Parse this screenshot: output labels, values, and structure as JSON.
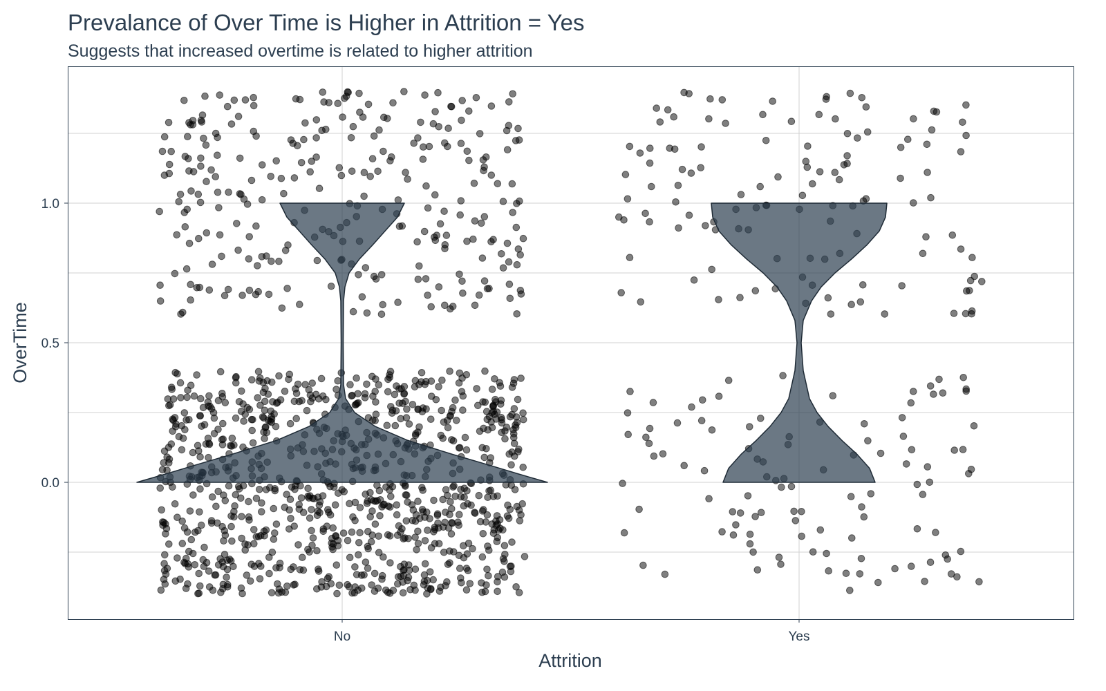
{
  "chart_data": {
    "type": "violin+jitter",
    "title": "Prevalance of Over Time is Higher in Attrition = Yes",
    "subtitle": "Suggests that increased overtime is related to higher attrition",
    "xlabel": "Attrition",
    "ylabel": "OverTime",
    "categories": [
      "No",
      "Yes"
    ],
    "yticks": [
      "0.0",
      "0.5",
      "1.0"
    ],
    "ylim": [
      -0.49,
      1.49
    ],
    "grid": true,
    "jitter": {
      "width": 0.4,
      "height": 0.4
    },
    "groups": [
      {
        "category": "No",
        "overtime_0_count": 944,
        "overtime_1_count": 289
      },
      {
        "category": "Yes",
        "overtime_0_count": 110,
        "overtime_1_count": 127
      }
    ],
    "colors": {
      "text": "#2c3e50",
      "violin_fill": "#2c3e50",
      "point": "#000000",
      "grid": "#d0d0d0"
    }
  }
}
